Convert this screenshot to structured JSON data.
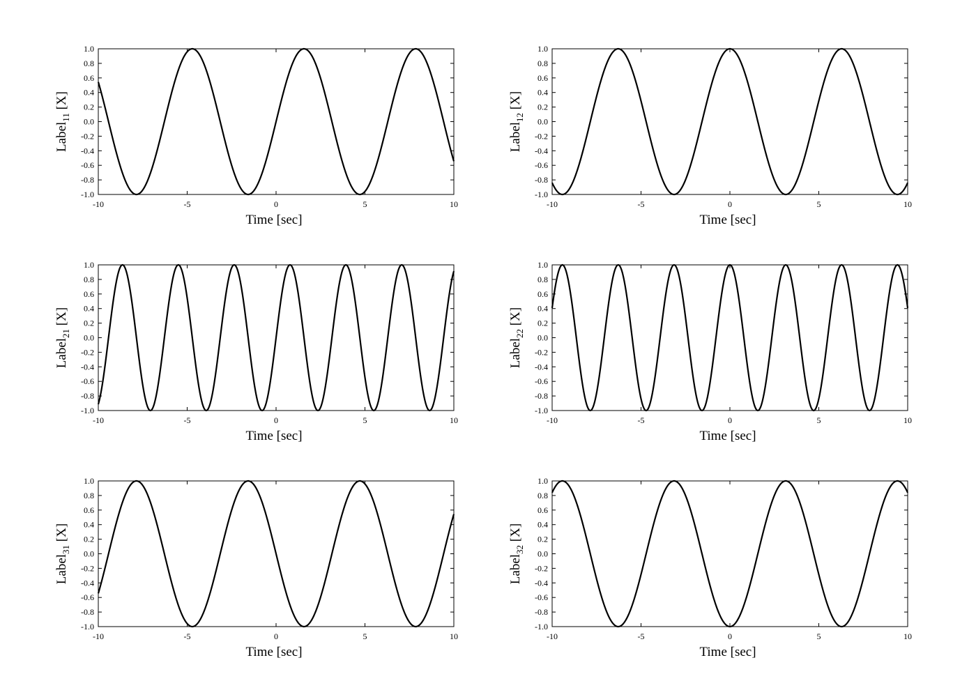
{
  "chart_data": [
    {
      "type": "line",
      "xlabel": "Time [sec]",
      "ylabel": {
        "main": "Label",
        "sub": "11",
        "unit": " [X]"
      },
      "xlim": [
        -10,
        10
      ],
      "ylim": [
        -1.0,
        1.0
      ],
      "xticks": [
        "-10",
        "-5",
        "0",
        "5",
        "10"
      ],
      "yticks": [
        "1.0",
        "0.8",
        "0.6",
        "0.4",
        "0.2",
        "0.0",
        "-0.2",
        "-0.4",
        "-0.6",
        "-0.8",
        "-1.0"
      ],
      "grid": false,
      "series": [
        {
          "values": {
            "amplitude": 1.0,
            "angular_frequency": 1.0,
            "phase": 0.0,
            "function": "sin"
          }
        }
      ]
    },
    {
      "type": "line",
      "xlabel": "Time [sec]",
      "ylabel": {
        "main": "Label",
        "sub": "12",
        "unit": " [X]"
      },
      "xlim": [
        -10,
        10
      ],
      "ylim": [
        -1.0,
        1.0
      ],
      "xticks": [
        "-10",
        "-5",
        "0",
        "5",
        "10"
      ],
      "yticks": [
        "1.0",
        "0.8",
        "0.6",
        "0.4",
        "0.2",
        "0.0",
        "-0.2",
        "-0.4",
        "-0.6",
        "-0.8",
        "-1.0"
      ],
      "grid": false,
      "series": [
        {
          "values": {
            "amplitude": 1.0,
            "angular_frequency": 1.0,
            "phase": 0.0,
            "function": "cos"
          }
        }
      ]
    },
    {
      "type": "line",
      "xlabel": "Time [sec]",
      "ylabel": {
        "main": "Label",
        "sub": "21",
        "unit": " [X]"
      },
      "xlim": [
        -10,
        10
      ],
      "ylim": [
        -1.0,
        1.0
      ],
      "xticks": [
        "-10",
        "-5",
        "0",
        "5",
        "10"
      ],
      "yticks": [
        "1.0",
        "0.8",
        "0.6",
        "0.4",
        "0.2",
        "0.0",
        "-0.2",
        "-0.4",
        "-0.6",
        "-0.8",
        "-1.0"
      ],
      "grid": false,
      "series": [
        {
          "values": {
            "amplitude": 1.0,
            "angular_frequency": 2.0,
            "phase": 0.0,
            "function": "sin"
          }
        }
      ]
    },
    {
      "type": "line",
      "xlabel": "Time [sec]",
      "ylabel": {
        "main": "Label",
        "sub": "22",
        "unit": " [X]"
      },
      "xlim": [
        -10,
        10
      ],
      "ylim": [
        -1.0,
        1.0
      ],
      "xticks": [
        "-10",
        "-5",
        "0",
        "5",
        "10"
      ],
      "yticks": [
        "1.0",
        "0.8",
        "0.6",
        "0.4",
        "0.2",
        "0.0",
        "-0.2",
        "-0.4",
        "-0.6",
        "-0.8",
        "-1.0"
      ],
      "grid": false,
      "series": [
        {
          "values": {
            "amplitude": 1.0,
            "angular_frequency": 2.0,
            "phase": 0.0,
            "function": "cos"
          }
        }
      ]
    },
    {
      "type": "line",
      "xlabel": "Time [sec]",
      "ylabel": {
        "main": "Label",
        "sub": "31",
        "unit": " [X]"
      },
      "xlim": [
        -10,
        10
      ],
      "ylim": [
        -1.0,
        1.0
      ],
      "xticks": [
        "-10",
        "-5",
        "0",
        "5",
        "10"
      ],
      "yticks": [
        "1.0",
        "0.8",
        "0.6",
        "0.4",
        "0.2",
        "0.0",
        "-0.2",
        "-0.4",
        "-0.6",
        "-0.8",
        "-1.0"
      ],
      "grid": false,
      "series": [
        {
          "values": {
            "amplitude": 1.0,
            "angular_frequency": 1.0,
            "phase": 0.0,
            "function": "-sin"
          }
        }
      ]
    },
    {
      "type": "line",
      "xlabel": "Time [sec]",
      "ylabel": {
        "main": "Label",
        "sub": "32",
        "unit": " [X]"
      },
      "xlim": [
        -10,
        10
      ],
      "ylim": [
        -1.0,
        1.0
      ],
      "xticks": [
        "-10",
        "-5",
        "0",
        "5",
        "10"
      ],
      "yticks": [
        "1.0",
        "0.8",
        "0.6",
        "0.4",
        "0.2",
        "0.0",
        "-0.2",
        "-0.4",
        "-0.6",
        "-0.8",
        "-1.0"
      ],
      "grid": false,
      "series": [
        {
          "values": {
            "amplitude": 1.0,
            "angular_frequency": 1.0,
            "phase": 0.0,
            "function": "-cos"
          }
        }
      ]
    }
  ]
}
